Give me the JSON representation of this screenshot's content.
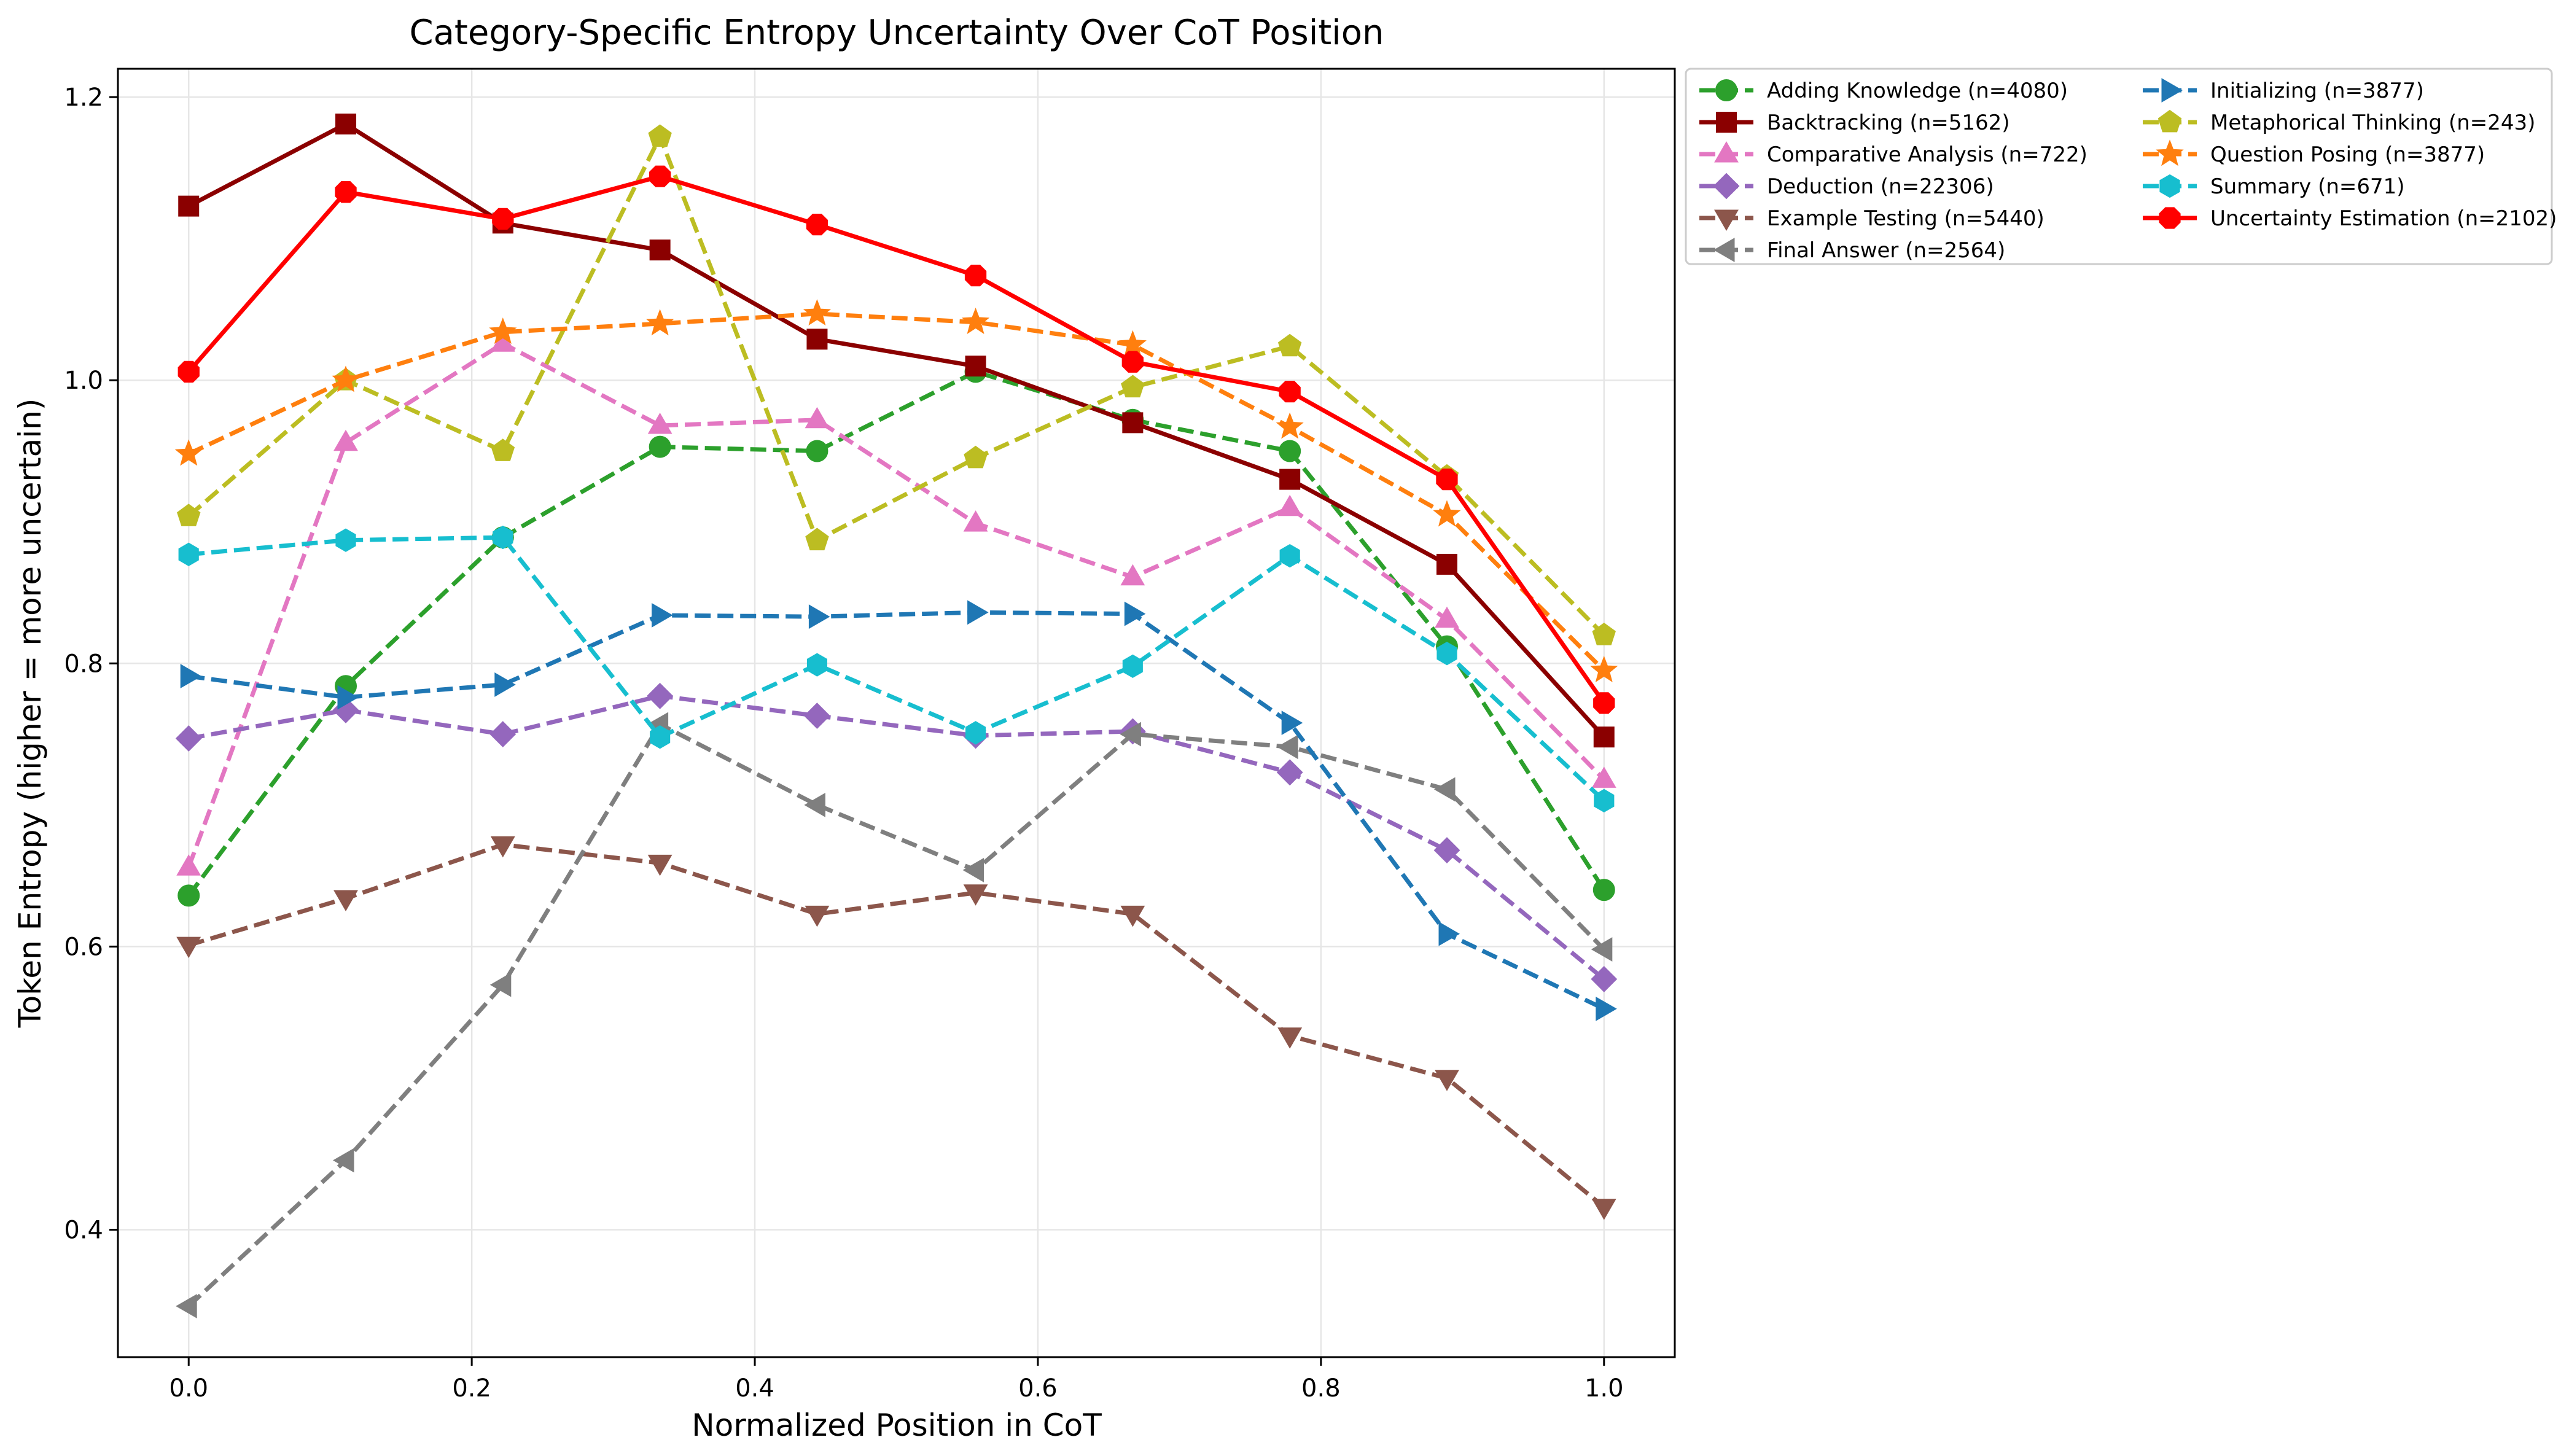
{
  "chart_data": {
    "type": "line",
    "title": "Category-Specific Entropy Uncertainty Over CoT Position",
    "xlabel": "Normalized Position in CoT",
    "ylabel": "Token Entropy (higher = more uncertain)",
    "xlim": [
      -0.05,
      1.05
    ],
    "ylim": [
      0.31,
      1.22
    ],
    "xticks": [
      "0.0",
      "0.2",
      "0.4",
      "0.6",
      "0.8",
      "1.0"
    ],
    "yticks": [
      "0.4",
      "0.6",
      "0.8",
      "1.0",
      "1.2"
    ],
    "grid": true,
    "legend_position": "outside-top-right",
    "legend_columns": 2,
    "x": [
      0.0,
      0.111,
      0.222,
      0.333,
      0.444,
      0.556,
      0.667,
      0.778,
      0.889,
      1.0
    ],
    "series": [
      {
        "name": "Adding Knowledge (n=4080)",
        "color": "#2ca02c",
        "dash": "dashed",
        "marker": "circle",
        "values": [
          0.636,
          0.784,
          0.889,
          0.953,
          0.95,
          1.006,
          0.972,
          0.95,
          0.812,
          0.64
        ]
      },
      {
        "name": "Backtracking (n=5162)",
        "color": "#8b0000",
        "dash": "solid",
        "marker": "square",
        "values": [
          1.123,
          1.181,
          1.111,
          1.092,
          1.029,
          1.01,
          0.97,
          0.93,
          0.87,
          0.748
        ]
      },
      {
        "name": "Comparative Analysis (n=722)",
        "color": "#e377c2",
        "dash": "dashed",
        "marker": "triangle-up",
        "values": [
          0.656,
          0.956,
          1.026,
          0.968,
          0.972,
          0.899,
          0.861,
          0.91,
          0.831,
          0.718
        ]
      },
      {
        "name": "Deduction (n=22306)",
        "color": "#9467bd",
        "dash": "dashed",
        "marker": "diamond",
        "values": [
          0.747,
          0.767,
          0.75,
          0.777,
          0.763,
          0.749,
          0.752,
          0.723,
          0.668,
          0.577
        ]
      },
      {
        "name": "Example Testing (n=5440)",
        "color": "#8c564b",
        "dash": "dashed",
        "marker": "triangle-down",
        "values": [
          0.601,
          0.634,
          0.672,
          0.659,
          0.623,
          0.638,
          0.623,
          0.537,
          0.507,
          0.416
        ]
      },
      {
        "name": "Final Answer (n=2564)",
        "color": "#7f7f7f",
        "dash": "dashed",
        "marker": "triangle-left",
        "values": [
          0.346,
          0.449,
          0.573,
          0.757,
          0.7,
          0.654,
          0.75,
          0.741,
          0.711,
          0.598
        ]
      },
      {
        "name": "Initializing (n=3877)",
        "color": "#1f77b4",
        "dash": "dashed",
        "marker": "triangle-right",
        "values": [
          0.791,
          0.776,
          0.785,
          0.834,
          0.833,
          0.836,
          0.835,
          0.758,
          0.609,
          0.556
        ]
      },
      {
        "name": "Metaphorical Thinking (n=243)",
        "color": "#bcbd22",
        "dash": "dashed",
        "marker": "pentagon",
        "values": [
          0.904,
          1.0,
          0.95,
          1.172,
          0.887,
          0.945,
          0.995,
          1.024,
          0.932,
          0.82
        ]
      },
      {
        "name": "Question Posing (n=3877)",
        "color": "#ff7f0e",
        "dash": "dashed",
        "marker": "star",
        "values": [
          0.948,
          1.0,
          1.034,
          1.04,
          1.047,
          1.041,
          1.025,
          0.967,
          0.905,
          0.795
        ]
      },
      {
        "name": "Summary (n=671)",
        "color": "#17becf",
        "dash": "dashed",
        "marker": "hexagon",
        "values": [
          0.877,
          0.887,
          0.889,
          0.748,
          0.799,
          0.751,
          0.798,
          0.876,
          0.807,
          0.703
        ]
      },
      {
        "name": "Uncertainty Estimation (n=2102)",
        "color": "#ff0000",
        "dash": "solid",
        "marker": "octagon",
        "values": [
          1.006,
          1.133,
          1.114,
          1.144,
          1.11,
          1.074,
          1.013,
          0.992,
          0.93,
          0.772
        ]
      }
    ]
  }
}
